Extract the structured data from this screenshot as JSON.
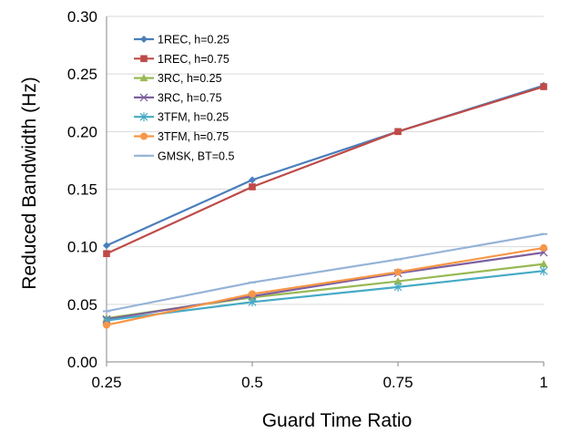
{
  "chart_data": {
    "type": "line",
    "title": "",
    "xlabel": "Guard Time Ratio",
    "ylabel": "Reduced Bandwidth (Hz)",
    "x": [
      0.25,
      0.5,
      0.75,
      1
    ],
    "x_tick_labels": [
      "0.25",
      "0.5",
      "0.75",
      "1"
    ],
    "y_tick_labels": [
      "0.00",
      "0.05",
      "0.10",
      "0.15",
      "0.20",
      "0.25",
      "0.30"
    ],
    "y_ticks": [
      0,
      0.05,
      0.1,
      0.15,
      0.2,
      0.25,
      0.3
    ],
    "ylim": [
      0,
      0.3
    ],
    "grid": "horizontal",
    "legend_position": "top-left",
    "series": [
      {
        "name": "1REC, h=0.25",
        "values": [
          0.101,
          0.158,
          0.2,
          0.24
        ],
        "color": "#4a7ebb",
        "marker": "diamond"
      },
      {
        "name": "1REC, h=0.75",
        "values": [
          0.094,
          0.152,
          0.2,
          0.239
        ],
        "color": "#be4b48",
        "marker": "square"
      },
      {
        "name": "3RC, h=0.25",
        "values": [
          0.038,
          0.056,
          0.07,
          0.085
        ],
        "color": "#98b954",
        "marker": "triangle"
      },
      {
        "name": "3RC, h=0.75",
        "values": [
          0.037,
          0.057,
          0.077,
          0.095
        ],
        "color": "#7d5fa0",
        "marker": "x"
      },
      {
        "name": "3TFM, h=0.25",
        "values": [
          0.036,
          0.052,
          0.065,
          0.079
        ],
        "color": "#46aac5",
        "marker": "star"
      },
      {
        "name": "3TFM, h=0.75",
        "values": [
          0.032,
          0.059,
          0.078,
          0.099
        ],
        "color": "#f79646",
        "marker": "circle"
      },
      {
        "name": "GMSK, BT=0.5",
        "values": [
          0.044,
          0.069,
          0.089,
          0.111
        ],
        "color": "#95b3d7",
        "marker": "dash"
      }
    ]
  }
}
